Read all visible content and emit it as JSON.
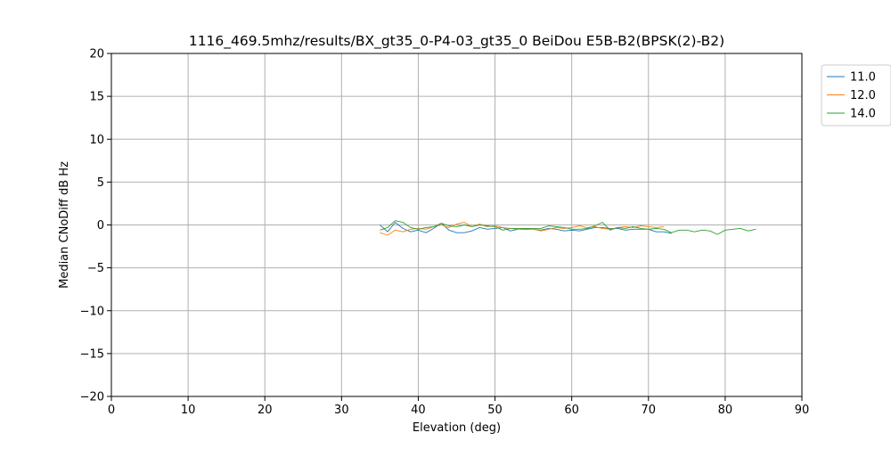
{
  "chart_data": {
    "type": "line",
    "title": "1116_469.5mhz/results/BX_gt35_0-P4-03_gt35_0 BeiDou E5B-B2(BPSK(2)-B2)",
    "xlabel": "Elevation (deg)",
    "ylabel": "Median CNoDiff dB Hz",
    "xlim": [
      0,
      90
    ],
    "ylim": [
      -20,
      20
    ],
    "xticks": [
      0,
      10,
      20,
      30,
      40,
      50,
      60,
      70,
      80,
      90
    ],
    "yticks": [
      -20,
      -15,
      -10,
      -5,
      0,
      5,
      10,
      15,
      20
    ],
    "xtick_labels": [
      "0",
      "10",
      "20",
      "30",
      "40",
      "50",
      "60",
      "70",
      "80",
      "90"
    ],
    "ytick_labels": [
      "−20",
      "−15",
      "−10",
      "−5",
      "0",
      "5",
      "10",
      "15",
      "20"
    ],
    "grid": true,
    "legend_position": "outside-top-right",
    "series": [
      {
        "name": "11.0",
        "color": "#1f77b4",
        "x": [
          35,
          36,
          37,
          38,
          39,
          40,
          41,
          42,
          43,
          44,
          45,
          46,
          47,
          48,
          49,
          50,
          51,
          52,
          53,
          54,
          55,
          56,
          57,
          58,
          59,
          60,
          61,
          62,
          63,
          64,
          65,
          66,
          67,
          68,
          69,
          70,
          71,
          72,
          73
        ],
        "y": [
          0.0,
          -0.8,
          0.3,
          -0.4,
          -0.8,
          -0.6,
          -0.9,
          -0.4,
          0.2,
          -0.6,
          -0.9,
          -0.9,
          -0.7,
          -0.3,
          -0.5,
          -0.4,
          -0.3,
          -0.7,
          -0.5,
          -0.5,
          -0.5,
          -0.6,
          -0.4,
          -0.5,
          -0.7,
          -0.6,
          -0.7,
          -0.5,
          -0.3,
          -0.3,
          -0.4,
          -0.4,
          -0.6,
          -0.5,
          -0.5,
          -0.5,
          -0.8,
          -0.8,
          -1.0
        ]
      },
      {
        "name": "12.0",
        "color": "#ff7f0e",
        "x": [
          35,
          36,
          37,
          38,
          39,
          40,
          41,
          42,
          43,
          44,
          45,
          46,
          47,
          48,
          49,
          50,
          51,
          52,
          53,
          54,
          55,
          56,
          57,
          58,
          59,
          60,
          61,
          62,
          63,
          64,
          65,
          66,
          67,
          68,
          69,
          70,
          71,
          72
        ],
        "y": [
          -0.9,
          -1.2,
          -0.6,
          -0.8,
          -0.5,
          -0.4,
          -0.5,
          -0.2,
          0.0,
          -0.3,
          0.1,
          0.3,
          -0.2,
          0.1,
          -0.2,
          -0.1,
          -0.3,
          -0.4,
          -0.5,
          -0.4,
          -0.5,
          -0.7,
          -0.5,
          -0.3,
          -0.4,
          -0.3,
          -0.1,
          -0.3,
          -0.2,
          -0.4,
          -0.5,
          -0.3,
          -0.2,
          -0.3,
          -0.1,
          -0.2,
          -0.3,
          -0.2
        ]
      },
      {
        "name": "14.0",
        "color": "#2ca02c",
        "x": [
          35,
          36,
          37,
          38,
          39,
          40,
          41,
          42,
          43,
          44,
          45,
          46,
          47,
          48,
          49,
          50,
          51,
          52,
          53,
          54,
          55,
          56,
          57,
          58,
          59,
          60,
          61,
          62,
          63,
          64,
          65,
          66,
          67,
          68,
          69,
          70,
          71,
          72,
          73,
          74,
          75,
          76,
          77,
          78,
          79,
          80,
          81,
          82,
          83,
          84
        ],
        "y": [
          -0.6,
          -0.3,
          0.5,
          0.3,
          -0.3,
          -0.5,
          -0.3,
          -0.2,
          0.2,
          -0.1,
          -0.2,
          0.0,
          -0.2,
          0.0,
          -0.1,
          -0.2,
          -0.6,
          -0.4,
          -0.4,
          -0.4,
          -0.4,
          -0.4,
          -0.1,
          -0.2,
          -0.3,
          -0.5,
          -0.5,
          -0.4,
          -0.1,
          0.3,
          -0.6,
          -0.3,
          -0.4,
          -0.2,
          -0.4,
          -0.5,
          -0.4,
          -0.5,
          -0.9,
          -0.6,
          -0.6,
          -0.8,
          -0.6,
          -0.7,
          -1.1,
          -0.6,
          -0.5,
          -0.4,
          -0.7,
          -0.5
        ]
      }
    ]
  }
}
